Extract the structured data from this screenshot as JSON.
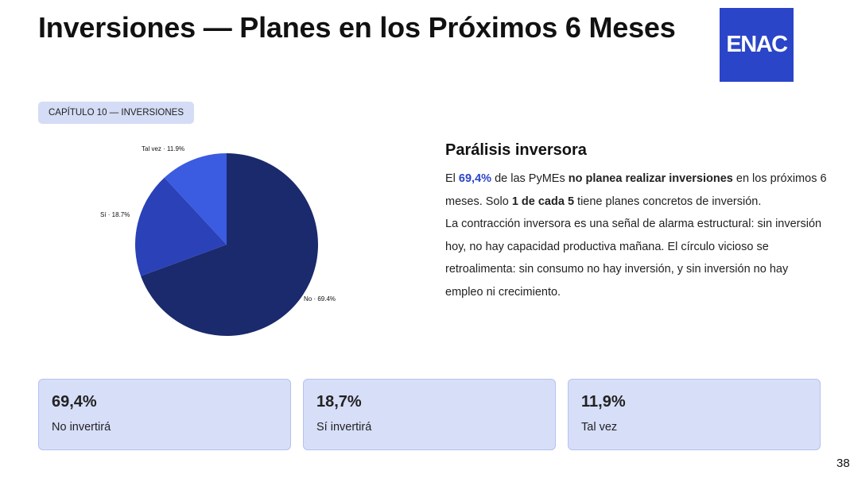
{
  "header": {
    "title": "Inversiones — Planes en los Próximos 6 Meses",
    "logo_text": "ENAC"
  },
  "chapter_label": "CAPÍTULO 10 — INVERSIONES",
  "chart_data": {
    "type": "pie",
    "slices": [
      {
        "label": "No",
        "value": 69.4,
        "display": "69.4%",
        "color": "#1a2a6c"
      },
      {
        "label": "Sí",
        "value": 18.7,
        "display": "18.7%",
        "color": "#2a41b8"
      },
      {
        "label": "Tal vez",
        "value": 11.9,
        "display": "11.9%",
        "color": "#3b5be0"
      }
    ]
  },
  "panel": {
    "heading": "Parálisis inversora",
    "p1_pre": "El ",
    "p1_stat": "69,4%",
    "p1_mid": " de las PyMEs ",
    "p1_bold": "no planea realizar inversiones",
    "p1_post": " en los próximos 6 meses. Solo ",
    "p1_bold2": "1 de cada 5",
    "p1_end": " tiene planes concretos de inversión.",
    "p2": "La contracción inversora es una señal de alarma estructural: sin inversión hoy, no hay capacidad productiva mañana. El círculo vicioso se retroalimenta: sin consumo no hay inversión, y sin inversión no hay empleo ni crecimiento."
  },
  "cards": [
    {
      "value": "69,4%",
      "label": "No invertirá"
    },
    {
      "value": "18,7%",
      "label": "Sí invertirá"
    },
    {
      "value": "11,9%",
      "label": "Tal vez"
    }
  ],
  "page_number": "38"
}
